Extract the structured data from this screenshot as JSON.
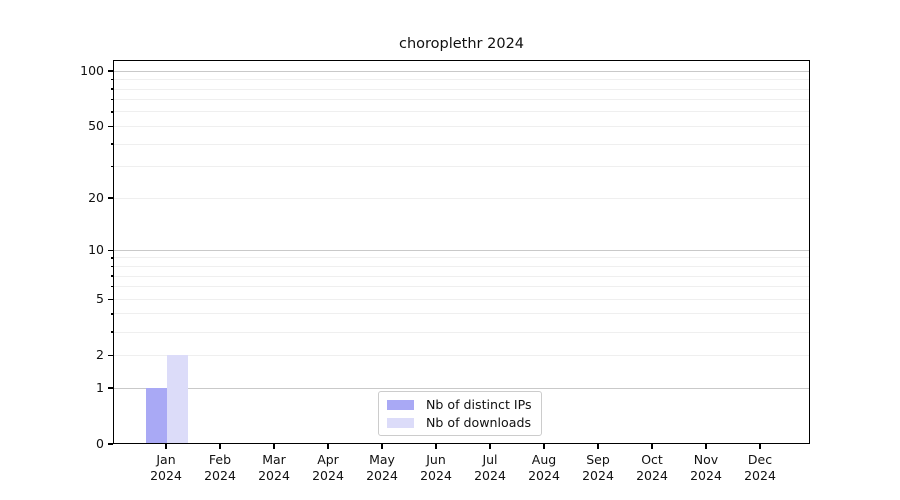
{
  "chart_data": {
    "type": "bar",
    "title": "choroplethr 2024",
    "x_tick_labels": [
      [
        "Jan",
        "2024"
      ],
      [
        "Feb",
        "2024"
      ],
      [
        "Mar",
        "2024"
      ],
      [
        "Apr",
        "2024"
      ],
      [
        "May",
        "2024"
      ],
      [
        "Jun",
        "2024"
      ],
      [
        "Jul",
        "2024"
      ],
      [
        "Aug",
        "2024"
      ],
      [
        "Sep",
        "2024"
      ],
      [
        "Oct",
        "2024"
      ],
      [
        "Nov",
        "2024"
      ],
      [
        "Dec",
        "2024"
      ]
    ],
    "series": [
      {
        "name": "Nb of distinct IPs",
        "color": "#a9a9f5",
        "values": [
          1,
          0,
          0,
          0,
          0,
          0,
          0,
          0,
          0,
          0,
          0,
          0
        ]
      },
      {
        "name": "Nb of downloads",
        "color": "#dcdcf9",
        "values": [
          2,
          0,
          0,
          0,
          0,
          0,
          0,
          0,
          0,
          0,
          0,
          0
        ]
      }
    ],
    "y_scale": "log1p",
    "ylim": [
      0,
      115
    ],
    "y_ticks_labeled": [
      0,
      1,
      2,
      5,
      10,
      20,
      50,
      100
    ],
    "y_gridlines_strong": [
      1,
      10,
      100
    ],
    "y_gridlines_light": [
      2,
      3,
      4,
      5,
      6,
      7,
      8,
      9,
      20,
      30,
      40,
      50,
      60,
      70,
      80,
      90
    ],
    "grid": "horizontal",
    "legend_position": "inside-bottom-center",
    "colors": {
      "grid_strong": "#c9c9c9",
      "grid_light": "#efefef",
      "spine": "#000000",
      "text": "#111111",
      "legend_border": "#cccccc",
      "background": "#ffffff"
    }
  }
}
